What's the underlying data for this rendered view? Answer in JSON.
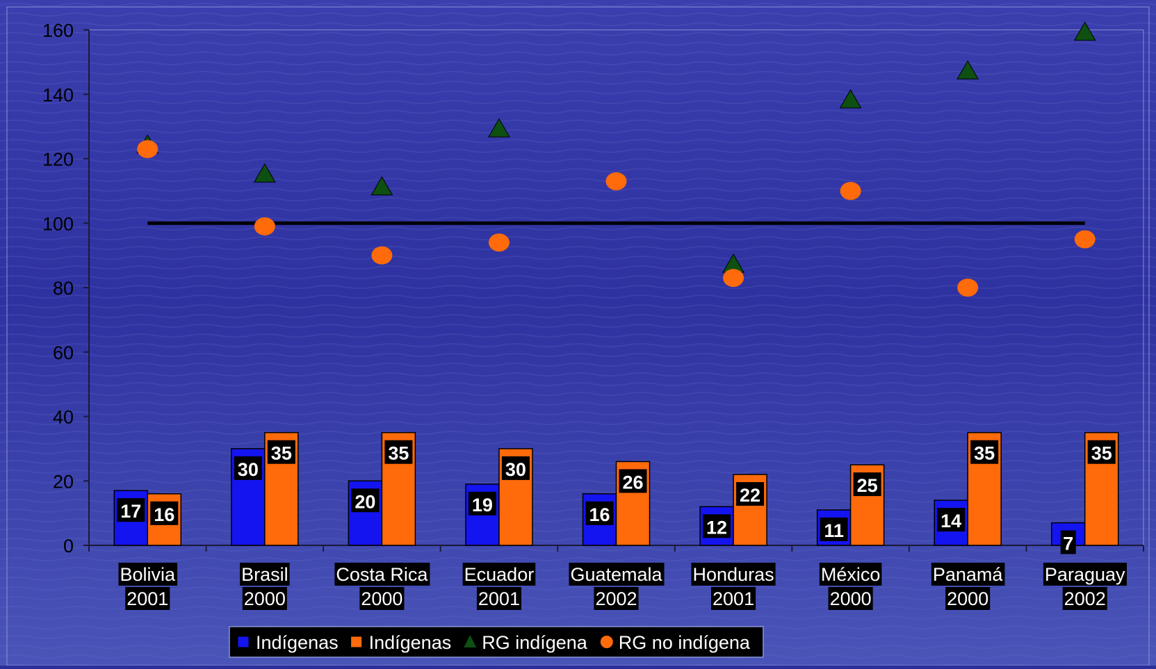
{
  "chart_data": {
    "type": "bar",
    "categories": [
      [
        "Bolivia",
        "2001"
      ],
      [
        "Brasil",
        "2000"
      ],
      [
        "Costa Rica",
        "2000"
      ],
      [
        "Ecuador",
        "2001"
      ],
      [
        "Guatemala",
        "2002"
      ],
      [
        "Honduras",
        "2001"
      ],
      [
        "México",
        "2000"
      ],
      [
        "Panamá",
        "2000"
      ],
      [
        "Paraguay",
        "2002"
      ]
    ],
    "series": [
      {
        "name": "Indígenas",
        "kind": "bar",
        "color": "#1414f0",
        "values": [
          17,
          30,
          20,
          19,
          16,
          12,
          11,
          14,
          7
        ]
      },
      {
        "name": "Indígenas",
        "kind": "bar",
        "color": "#ff6a0a",
        "values": [
          16,
          35,
          35,
          30,
          26,
          22,
          25,
          35,
          35
        ]
      },
      {
        "name": "RG indígena",
        "kind": "scatter",
        "marker": "triangle",
        "color": "#0e4f12",
        "values": [
          124,
          115,
          111,
          129,
          null,
          87,
          138,
          147,
          159
        ]
      },
      {
        "name": "RG no indígena",
        "kind": "scatter",
        "marker": "circle",
        "color": "#ff6a0a",
        "values": [
          123,
          99,
          90,
          94,
          113,
          83,
          110,
          80,
          95
        ]
      }
    ],
    "reference_line": {
      "value": 100,
      "color": "#000000"
    },
    "ylim": [
      0,
      160
    ],
    "yticks": [
      0,
      20,
      40,
      60,
      80,
      100,
      120,
      140,
      160
    ],
    "title": "",
    "xlabel": "",
    "ylabel": "",
    "legend_position": "bottom-center",
    "grid": false
  }
}
